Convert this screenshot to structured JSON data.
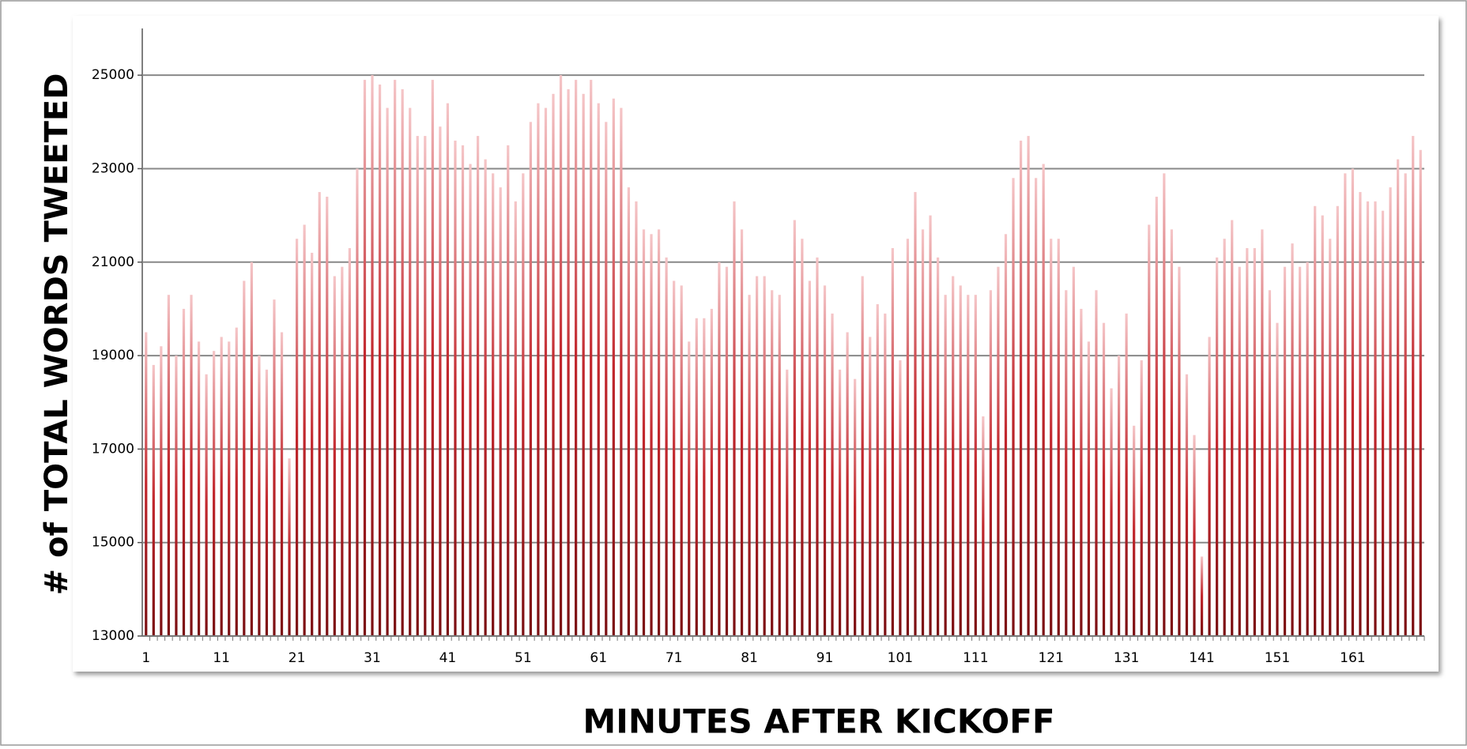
{
  "chart_data": {
    "type": "bar",
    "title": "MINUTES  AFTER  KICKOFF",
    "y_label": "# of  TOTAL  WORDS  TWEETED",
    "categories": [
      1,
      null,
      null,
      null,
      null,
      null,
      null,
      null,
      null,
      null,
      11,
      null,
      null,
      null,
      null,
      null,
      null,
      null,
      null,
      null,
      21,
      null,
      null,
      null,
      null,
      null,
      null,
      null,
      null,
      null,
      31,
      null,
      null,
      null,
      null,
      null,
      null,
      null,
      null,
      null,
      41,
      null,
      null,
      null,
      null,
      null,
      null,
      null,
      null,
      null,
      51,
      null,
      null,
      null,
      null,
      null,
      null,
      null,
      null,
      null,
      61,
      null,
      null,
      null,
      null,
      null,
      null,
      null,
      null,
      null,
      71,
      null,
      null,
      null,
      null,
      null,
      null,
      null,
      null,
      null,
      81,
      null,
      null,
      null,
      null,
      null,
      null,
      null,
      null,
      null,
      91,
      null,
      null,
      null,
      null,
      null,
      null,
      null,
      null,
      null,
      101,
      null,
      null,
      null,
      null,
      null,
      null,
      null,
      null,
      null,
      111,
      null,
      null,
      null,
      null,
      null,
      null,
      null,
      null,
      null,
      121,
      null,
      null,
      null,
      null,
      null,
      null,
      null,
      null,
      null,
      131,
      null,
      null,
      null,
      null,
      null,
      null,
      null,
      null,
      null,
      141,
      null,
      null,
      null,
      null,
      null,
      null,
      null,
      null,
      null,
      151,
      null,
      null,
      null,
      null,
      null,
      null,
      null,
      null,
      null,
      161,
      null,
      null,
      null,
      null,
      null,
      null,
      null,
      null,
      null
    ],
    "values": [
      19500,
      18800,
      19200,
      20300,
      19000,
      20000,
      20300,
      19300,
      18600,
      19100,
      19400,
      19300,
      19600,
      20600,
      21000,
      19000,
      18700,
      20200,
      19500,
      16800,
      21500,
      21800,
      21200,
      22500,
      22400,
      20700,
      20900,
      21300,
      23000,
      24900,
      25000,
      24800,
      24300,
      24900,
      24700,
      24300,
      23700,
      23700,
      24900,
      23900,
      24400,
      23600,
      23500,
      23100,
      23700,
      23200,
      22900,
      22600,
      23500,
      22300,
      22900,
      24000,
      24400,
      24300,
      24600,
      25000,
      24700,
      24900,
      24600,
      24900,
      24400,
      24000,
      24500,
      24300,
      22600,
      22300,
      21700,
      21600,
      21700,
      21100,
      20600,
      20500,
      19300,
      19800,
      19800,
      20000,
      21000,
      20900,
      22300,
      21700,
      20300,
      20700,
      20700,
      20400,
      20300,
      18700,
      21900,
      21500,
      20600,
      21100,
      20500,
      19900,
      18700,
      19500,
      18500,
      20700,
      19400,
      20100,
      19900,
      21300,
      18900,
      21500,
      22500,
      21700,
      22000,
      21100,
      20300,
      20700,
      20500,
      20300,
      20300,
      17700,
      20400,
      20900,
      21600,
      22800,
      23600,
      23700,
      22800,
      23100,
      21500,
      21500,
      20400,
      20900,
      20000,
      19300,
      20400,
      19700,
      18300,
      19000,
      19900,
      17500,
      18900,
      21800,
      22400,
      22900,
      21700,
      20900,
      18600,
      17300,
      14700,
      19400,
      21100,
      21500,
      21900,
      20900,
      21300,
      21300,
      21700,
      20400,
      19700,
      20900,
      21400,
      20900,
      21000,
      22200,
      22000,
      21500,
      22200,
      22900,
      23000,
      22500,
      22300,
      22300,
      22100,
      22600,
      23200,
      22900,
      23700,
      23400
    ],
    "color": "#b01c1c",
    "ylim": [
      13000,
      26000
    ],
    "yticks": [
      13000,
      15000,
      17000,
      19000,
      21000,
      23000,
      25000
    ],
    "grid": true
  }
}
